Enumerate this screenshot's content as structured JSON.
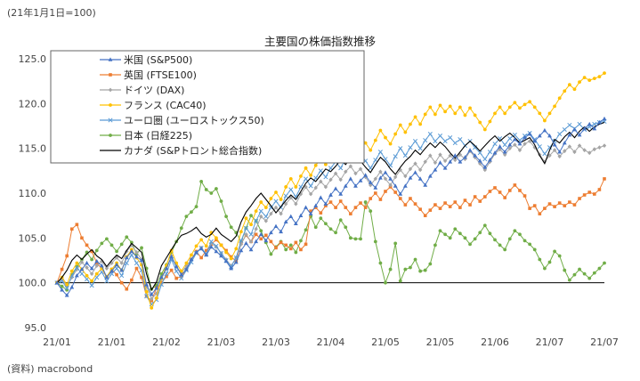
{
  "header_note": "(21年1月1日=100)",
  "source_note": "(資料) macrobond",
  "chart_data": {
    "type": "line",
    "title": "主要国の株価指数推移",
    "xlabel": "",
    "ylabel": "",
    "ylim": [
      95,
      125
    ],
    "yticks": [
      "95.0",
      "100.0",
      "105.0",
      "110.0",
      "115.0",
      "120.0",
      "125.0"
    ],
    "xtick_labels": [
      "21/01",
      "21/01",
      "21/02",
      "21/03",
      "21/03",
      "21/04",
      "21/05",
      "21/05",
      "21/06",
      "21/07",
      "21/07"
    ],
    "grid": false,
    "legend_position": "top-left",
    "series": [
      {
        "name": "米国 (S&P500)",
        "color": "#4472C4",
        "marker": "triangle",
        "values": [
          100.0,
          99.2,
          98.6,
          99.5,
          100.8,
          101.5,
          102.2,
          101.6,
          102.4,
          101.9,
          100.6,
          101.3,
          102.0,
          101.4,
          102.8,
          103.5,
          102.9,
          102.5,
          99.8,
          98.7,
          99.4,
          100.6,
          101.6,
          102.9,
          101.8,
          100.9,
          101.5,
          102.6,
          103.4,
          103.8,
          103.1,
          104.0,
          103.5,
          103.0,
          102.4,
          101.6,
          102.3,
          103.6,
          104.4,
          103.7,
          104.6,
          105.4,
          104.7,
          105.6,
          106.3,
          105.7,
          106.8,
          107.4,
          106.6,
          107.5,
          108.4,
          107.7,
          108.6,
          109.5,
          108.8,
          109.8,
          110.5,
          109.9,
          110.8,
          111.6,
          110.8,
          111.4,
          112.0,
          111.2,
          110.6,
          111.7,
          112.3,
          111.6,
          110.8,
          109.9,
          110.8,
          111.7,
          112.3,
          111.6,
          110.9,
          111.9,
          112.6,
          113.4,
          112.8,
          113.5,
          114.2,
          113.5,
          114.0,
          114.8,
          114.2,
          113.6,
          112.9,
          113.7,
          114.5,
          115.2,
          114.6,
          115.4,
          116.0,
          115.5,
          116.2,
          116.6,
          115.8,
          116.4,
          117.0,
          116.4,
          115.4,
          114.6,
          115.6,
          116.5,
          117.1,
          116.5,
          117.2,
          117.7,
          117.2,
          117.9,
          118.3
        ]
      },
      {
        "name": "英国 (FTSE100)",
        "color": "#ED7D31",
        "marker": "square",
        "values": [
          100.0,
          101.5,
          103.0,
          106.0,
          106.5,
          105.0,
          104.2,
          103.5,
          102.2,
          101.6,
          100.6,
          101.5,
          100.9,
          100.0,
          99.3,
          100.3,
          101.6,
          100.6,
          98.5,
          98.0,
          99.4,
          100.0,
          100.7,
          101.4,
          100.5,
          100.7,
          101.5,
          102.6,
          103.5,
          102.8,
          103.6,
          104.3,
          104.8,
          104.2,
          103.6,
          102.9,
          102.4,
          104.4,
          105.3,
          104.6,
          105.4,
          104.9,
          105.3,
          104.6,
          103.9,
          104.5,
          104.2,
          103.8,
          104.5,
          103.7,
          104.3,
          108.0,
          108.4,
          107.8,
          108.6,
          109.0,
          108.4,
          109.1,
          108.4,
          107.7,
          108.4,
          108.9,
          108.4,
          109.4,
          110.0,
          109.3,
          110.2,
          110.7,
          110.1,
          109.4,
          108.7,
          109.4,
          108.8,
          108.2,
          107.5,
          108.1,
          108.7,
          108.3,
          108.9,
          108.5,
          109.0,
          108.4,
          109.2,
          108.7,
          109.6,
          109.1,
          109.6,
          110.2,
          110.6,
          110.1,
          109.5,
          110.3,
          110.9,
          110.3,
          109.7,
          108.3,
          108.6,
          107.7,
          108.3,
          108.8,
          108.5,
          108.9,
          108.6,
          109.0,
          108.7,
          109.4,
          109.8,
          110.1,
          109.9,
          110.4,
          111.6
        ]
      },
      {
        "name": "ドイツ (DAX)",
        "color": "#A5A5A5",
        "marker": "diamond",
        "values": [
          100.0,
          100.4,
          99.6,
          100.6,
          101.5,
          102.3,
          101.7,
          101.0,
          101.9,
          102.4,
          101.6,
          102.2,
          102.8,
          102.2,
          103.5,
          104.2,
          103.4,
          102.6,
          99.6,
          98.2,
          98.8,
          100.4,
          101.6,
          103.0,
          101.8,
          101.1,
          101.9,
          102.6,
          103.4,
          103.9,
          103.2,
          104.4,
          104.0,
          103.3,
          102.6,
          101.9,
          102.8,
          104.3,
          105.4,
          104.6,
          106.0,
          107.4,
          106.9,
          107.7,
          108.4,
          107.7,
          108.8,
          109.5,
          108.8,
          109.9,
          110.7,
          109.9,
          110.6,
          111.3,
          110.7,
          111.5,
          112.2,
          111.5,
          112.4,
          113.0,
          112.2,
          112.7,
          111.8,
          110.9,
          111.6,
          112.4,
          111.6,
          110.9,
          111.8,
          112.6,
          111.9,
          112.7,
          113.3,
          112.6,
          113.5,
          114.2,
          113.4,
          114.3,
          113.6,
          114.2,
          113.7,
          114.3,
          113.8,
          114.7,
          114.0,
          113.3,
          112.6,
          113.5,
          114.4,
          114.9,
          114.3,
          115.0,
          115.4,
          114.8,
          115.5,
          115.8,
          115.1,
          114.3,
          113.5,
          114.2,
          114.8,
          114.1,
          114.7,
          115.2,
          114.6,
          115.3,
          114.8,
          114.5,
          114.9,
          115.1,
          115.3
        ]
      },
      {
        "name": "フランス (CAC40)",
        "color": "#FFC000",
        "marker": "circle",
        "values": [
          100.0,
          100.6,
          99.8,
          101.3,
          102.2,
          101.5,
          100.8,
          100.2,
          101.0,
          101.6,
          100.7,
          101.5,
          102.2,
          101.4,
          102.9,
          103.7,
          102.8,
          102.0,
          99.0,
          97.2,
          98.3,
          100.5,
          101.9,
          103.6,
          102.2,
          101.3,
          102.2,
          103.1,
          104.1,
          104.8,
          104.1,
          105.6,
          105.0,
          104.2,
          103.4,
          102.7,
          103.8,
          105.7,
          107.2,
          106.5,
          108.0,
          109.0,
          108.4,
          109.4,
          110.1,
          109.3,
          110.7,
          111.6,
          110.7,
          111.9,
          112.8,
          112.0,
          113.1,
          113.9,
          113.2,
          114.5,
          115.3,
          114.6,
          115.7,
          116.4,
          115.6,
          116.4,
          115.6,
          114.8,
          115.9,
          117.0,
          116.2,
          115.5,
          116.6,
          117.6,
          116.8,
          117.7,
          118.5,
          117.7,
          118.8,
          119.6,
          118.8,
          119.8,
          119.1,
          119.7,
          118.9,
          119.6,
          118.7,
          119.5,
          118.7,
          117.9,
          117.1,
          118.0,
          118.9,
          119.6,
          118.9,
          119.6,
          120.1,
          119.5,
          119.9,
          120.2,
          119.6,
          118.9,
          118.1,
          118.9,
          119.7,
          120.6,
          121.4,
          122.1,
          121.6,
          122.4,
          122.9,
          122.6,
          122.8,
          123.0,
          123.4
        ]
      },
      {
        "name": "ユーロ圏 (ユーロストックス50)",
        "color": "#5B9BD5",
        "marker": "x",
        "values": [
          100.0,
          100.2,
          99.4,
          100.8,
          101.7,
          101.0,
          100.4,
          99.7,
          100.6,
          101.2,
          100.2,
          101.0,
          101.6,
          100.8,
          102.2,
          103.1,
          102.2,
          101.4,
          98.5,
          97.6,
          98.1,
          99.8,
          101.0,
          102.6,
          101.3,
          100.5,
          101.4,
          102.3,
          103.3,
          103.9,
          103.2,
          104.6,
          104.1,
          103.3,
          102.5,
          101.8,
          102.8,
          104.7,
          106.1,
          105.4,
          106.9,
          108.0,
          107.4,
          108.4,
          109.1,
          108.4,
          109.7,
          110.4,
          109.6,
          110.7,
          111.6,
          110.8,
          111.7,
          112.5,
          111.8,
          112.8,
          113.5,
          112.8,
          113.8,
          114.5,
          113.8,
          114.4,
          113.6,
          112.8,
          113.7,
          114.6,
          113.8,
          113.1,
          114.1,
          115.0,
          114.2,
          115.1,
          115.8,
          115.0,
          115.9,
          116.6,
          115.8,
          116.4,
          115.8,
          116.2,
          115.6,
          116.0,
          115.3,
          115.8,
          115.1,
          114.5,
          113.8,
          114.6,
          115.5,
          116.1,
          115.4,
          116.1,
          116.5,
          115.9,
          116.4,
          116.7,
          116.0,
          115.2,
          114.4,
          115.1,
          115.8,
          116.6,
          117.1,
          117.6,
          117.2,
          117.7,
          117.1,
          117.4,
          117.7,
          117.9,
          118.0
        ]
      },
      {
        "name": "日本 (日経225)",
        "color": "#70AD47",
        "marker": "circle",
        "values": [
          100.0,
          99.6,
          99.2,
          100.9,
          101.8,
          102.6,
          103.4,
          102.6,
          103.6,
          104.4,
          104.9,
          104.2,
          103.5,
          104.3,
          105.1,
          104.5,
          103.2,
          103.9,
          101.6,
          99.3,
          99.7,
          101.0,
          102.0,
          103.4,
          104.6,
          106.1,
          107.4,
          107.9,
          108.5,
          111.3,
          110.4,
          110.0,
          110.5,
          109.1,
          107.4,
          106.2,
          105.6,
          104.6,
          106.1,
          107.5,
          106.9,
          105.8,
          104.5,
          103.2,
          104.0,
          104.6,
          103.7,
          104.2,
          103.4,
          104.7,
          105.9,
          107.4,
          106.2,
          107.2,
          106.6,
          106.0,
          105.6,
          107.0,
          106.2,
          105.0,
          104.9,
          104.9,
          109.0,
          108.0,
          104.6,
          102.2,
          100.0,
          101.5,
          104.4,
          100.2,
          101.5,
          101.7,
          102.6,
          101.3,
          101.4,
          102.1,
          104.2,
          105.8,
          105.4,
          105.0,
          106.0,
          105.5,
          105.0,
          104.3,
          104.9,
          105.6,
          106.4,
          105.5,
          104.8,
          104.2,
          103.7,
          104.9,
          105.8,
          105.4,
          104.7,
          104.3,
          103.7,
          102.6,
          101.6,
          102.3,
          103.5,
          103.0,
          101.4,
          100.3,
          100.9,
          101.5,
          101.0,
          100.5,
          101.1,
          101.6,
          102.2
        ]
      },
      {
        "name": "カナダ (S&Pトロント総合指数)",
        "color": "#000000",
        "marker": "none",
        "values": [
          100.0,
          100.6,
          101.4,
          102.5,
          103.1,
          102.6,
          103.2,
          103.7,
          103.0,
          102.6,
          101.8,
          102.5,
          103.1,
          102.7,
          103.6,
          104.4,
          103.9,
          103.4,
          101.0,
          99.2,
          100.1,
          101.9,
          102.8,
          103.7,
          104.6,
          105.3,
          105.5,
          105.8,
          106.2,
          105.5,
          105.1,
          105.4,
          106.1,
          105.4,
          105.0,
          104.6,
          105.2,
          106.8,
          107.9,
          108.6,
          109.4,
          110.0,
          109.3,
          108.6,
          107.8,
          108.5,
          109.2,
          109.8,
          109.3,
          110.2,
          111.1,
          111.7,
          111.3,
          112.0,
          112.7,
          112.4,
          113.0,
          113.7,
          113.2,
          113.9,
          114.1,
          113.6,
          112.9,
          112.3,
          113.2,
          114.0,
          113.5,
          112.7,
          112.1,
          112.9,
          113.6,
          114.1,
          114.8,
          114.3,
          115.0,
          115.6,
          115.1,
          115.7,
          115.2,
          114.5,
          113.9,
          114.6,
          115.3,
          115.8,
          115.3,
          114.7,
          115.3,
          115.9,
          116.4,
          115.8,
          116.3,
          116.7,
          116.2,
          115.6,
          115.9,
          116.2,
          115.4,
          114.2,
          113.3,
          114.8,
          116.0,
          115.6,
          116.3,
          116.8,
          116.2,
          116.9,
          117.4,
          116.9,
          117.4,
          117.7,
          117.9
        ]
      }
    ]
  }
}
